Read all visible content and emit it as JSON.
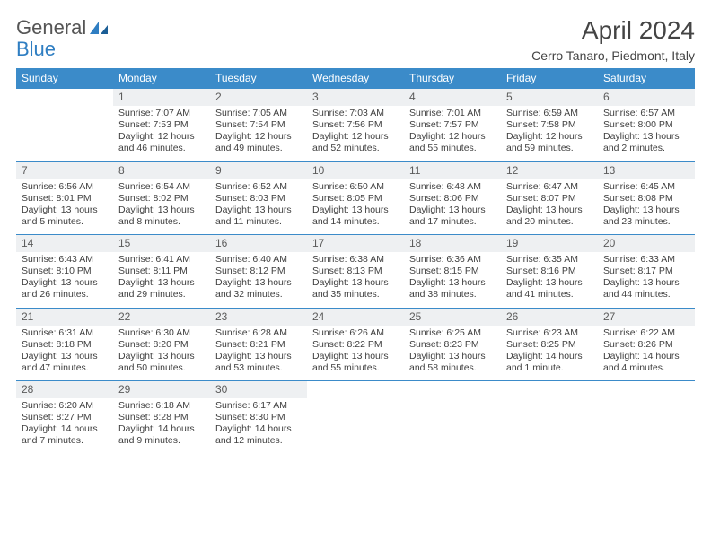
{
  "logo": {
    "word1": "General",
    "word2": "Blue"
  },
  "title": "April 2024",
  "subtitle": "Cerro Tanaro, Piedmont, Italy",
  "colors": {
    "header_bg": "#3b8bc9",
    "header_text": "#ffffff",
    "daynum_bg": "#eef0f2",
    "border": "#3b8bc9",
    "body_text": "#3f3f3f",
    "title_text": "#444444",
    "logo_gray": "#555555",
    "logo_blue": "#2f7ec2",
    "page_bg": "#ffffff"
  },
  "fonts": {
    "family": "Arial",
    "title_size": 28,
    "subtitle_size": 14,
    "dayhead_size": 12,
    "daynum_size": 12,
    "cell_size": 10.5
  },
  "dayHeaders": [
    "Sunday",
    "Monday",
    "Tuesday",
    "Wednesday",
    "Thursday",
    "Friday",
    "Saturday"
  ],
  "weeks": [
    [
      null,
      {
        "num": "1",
        "sr": "Sunrise: 7:07 AM",
        "ss": "Sunset: 7:53 PM",
        "dl": "Daylight: 12 hours and 46 minutes."
      },
      {
        "num": "2",
        "sr": "Sunrise: 7:05 AM",
        "ss": "Sunset: 7:54 PM",
        "dl": "Daylight: 12 hours and 49 minutes."
      },
      {
        "num": "3",
        "sr": "Sunrise: 7:03 AM",
        "ss": "Sunset: 7:56 PM",
        "dl": "Daylight: 12 hours and 52 minutes."
      },
      {
        "num": "4",
        "sr": "Sunrise: 7:01 AM",
        "ss": "Sunset: 7:57 PM",
        "dl": "Daylight: 12 hours and 55 minutes."
      },
      {
        "num": "5",
        "sr": "Sunrise: 6:59 AM",
        "ss": "Sunset: 7:58 PM",
        "dl": "Daylight: 12 hours and 59 minutes."
      },
      {
        "num": "6",
        "sr": "Sunrise: 6:57 AM",
        "ss": "Sunset: 8:00 PM",
        "dl": "Daylight: 13 hours and 2 minutes."
      }
    ],
    [
      {
        "num": "7",
        "sr": "Sunrise: 6:56 AM",
        "ss": "Sunset: 8:01 PM",
        "dl": "Daylight: 13 hours and 5 minutes."
      },
      {
        "num": "8",
        "sr": "Sunrise: 6:54 AM",
        "ss": "Sunset: 8:02 PM",
        "dl": "Daylight: 13 hours and 8 minutes."
      },
      {
        "num": "9",
        "sr": "Sunrise: 6:52 AM",
        "ss": "Sunset: 8:03 PM",
        "dl": "Daylight: 13 hours and 11 minutes."
      },
      {
        "num": "10",
        "sr": "Sunrise: 6:50 AM",
        "ss": "Sunset: 8:05 PM",
        "dl": "Daylight: 13 hours and 14 minutes."
      },
      {
        "num": "11",
        "sr": "Sunrise: 6:48 AM",
        "ss": "Sunset: 8:06 PM",
        "dl": "Daylight: 13 hours and 17 minutes."
      },
      {
        "num": "12",
        "sr": "Sunrise: 6:47 AM",
        "ss": "Sunset: 8:07 PM",
        "dl": "Daylight: 13 hours and 20 minutes."
      },
      {
        "num": "13",
        "sr": "Sunrise: 6:45 AM",
        "ss": "Sunset: 8:08 PM",
        "dl": "Daylight: 13 hours and 23 minutes."
      }
    ],
    [
      {
        "num": "14",
        "sr": "Sunrise: 6:43 AM",
        "ss": "Sunset: 8:10 PM",
        "dl": "Daylight: 13 hours and 26 minutes."
      },
      {
        "num": "15",
        "sr": "Sunrise: 6:41 AM",
        "ss": "Sunset: 8:11 PM",
        "dl": "Daylight: 13 hours and 29 minutes."
      },
      {
        "num": "16",
        "sr": "Sunrise: 6:40 AM",
        "ss": "Sunset: 8:12 PM",
        "dl": "Daylight: 13 hours and 32 minutes."
      },
      {
        "num": "17",
        "sr": "Sunrise: 6:38 AM",
        "ss": "Sunset: 8:13 PM",
        "dl": "Daylight: 13 hours and 35 minutes."
      },
      {
        "num": "18",
        "sr": "Sunrise: 6:36 AM",
        "ss": "Sunset: 8:15 PM",
        "dl": "Daylight: 13 hours and 38 minutes."
      },
      {
        "num": "19",
        "sr": "Sunrise: 6:35 AM",
        "ss": "Sunset: 8:16 PM",
        "dl": "Daylight: 13 hours and 41 minutes."
      },
      {
        "num": "20",
        "sr": "Sunrise: 6:33 AM",
        "ss": "Sunset: 8:17 PM",
        "dl": "Daylight: 13 hours and 44 minutes."
      }
    ],
    [
      {
        "num": "21",
        "sr": "Sunrise: 6:31 AM",
        "ss": "Sunset: 8:18 PM",
        "dl": "Daylight: 13 hours and 47 minutes."
      },
      {
        "num": "22",
        "sr": "Sunrise: 6:30 AM",
        "ss": "Sunset: 8:20 PM",
        "dl": "Daylight: 13 hours and 50 minutes."
      },
      {
        "num": "23",
        "sr": "Sunrise: 6:28 AM",
        "ss": "Sunset: 8:21 PM",
        "dl": "Daylight: 13 hours and 53 minutes."
      },
      {
        "num": "24",
        "sr": "Sunrise: 6:26 AM",
        "ss": "Sunset: 8:22 PM",
        "dl": "Daylight: 13 hours and 55 minutes."
      },
      {
        "num": "25",
        "sr": "Sunrise: 6:25 AM",
        "ss": "Sunset: 8:23 PM",
        "dl": "Daylight: 13 hours and 58 minutes."
      },
      {
        "num": "26",
        "sr": "Sunrise: 6:23 AM",
        "ss": "Sunset: 8:25 PM",
        "dl": "Daylight: 14 hours and 1 minute."
      },
      {
        "num": "27",
        "sr": "Sunrise: 6:22 AM",
        "ss": "Sunset: 8:26 PM",
        "dl": "Daylight: 14 hours and 4 minutes."
      }
    ],
    [
      {
        "num": "28",
        "sr": "Sunrise: 6:20 AM",
        "ss": "Sunset: 8:27 PM",
        "dl": "Daylight: 14 hours and 7 minutes."
      },
      {
        "num": "29",
        "sr": "Sunrise: 6:18 AM",
        "ss": "Sunset: 8:28 PM",
        "dl": "Daylight: 14 hours and 9 minutes."
      },
      {
        "num": "30",
        "sr": "Sunrise: 6:17 AM",
        "ss": "Sunset: 8:30 PM",
        "dl": "Daylight: 14 hours and 12 minutes."
      },
      null,
      null,
      null,
      null
    ]
  ]
}
